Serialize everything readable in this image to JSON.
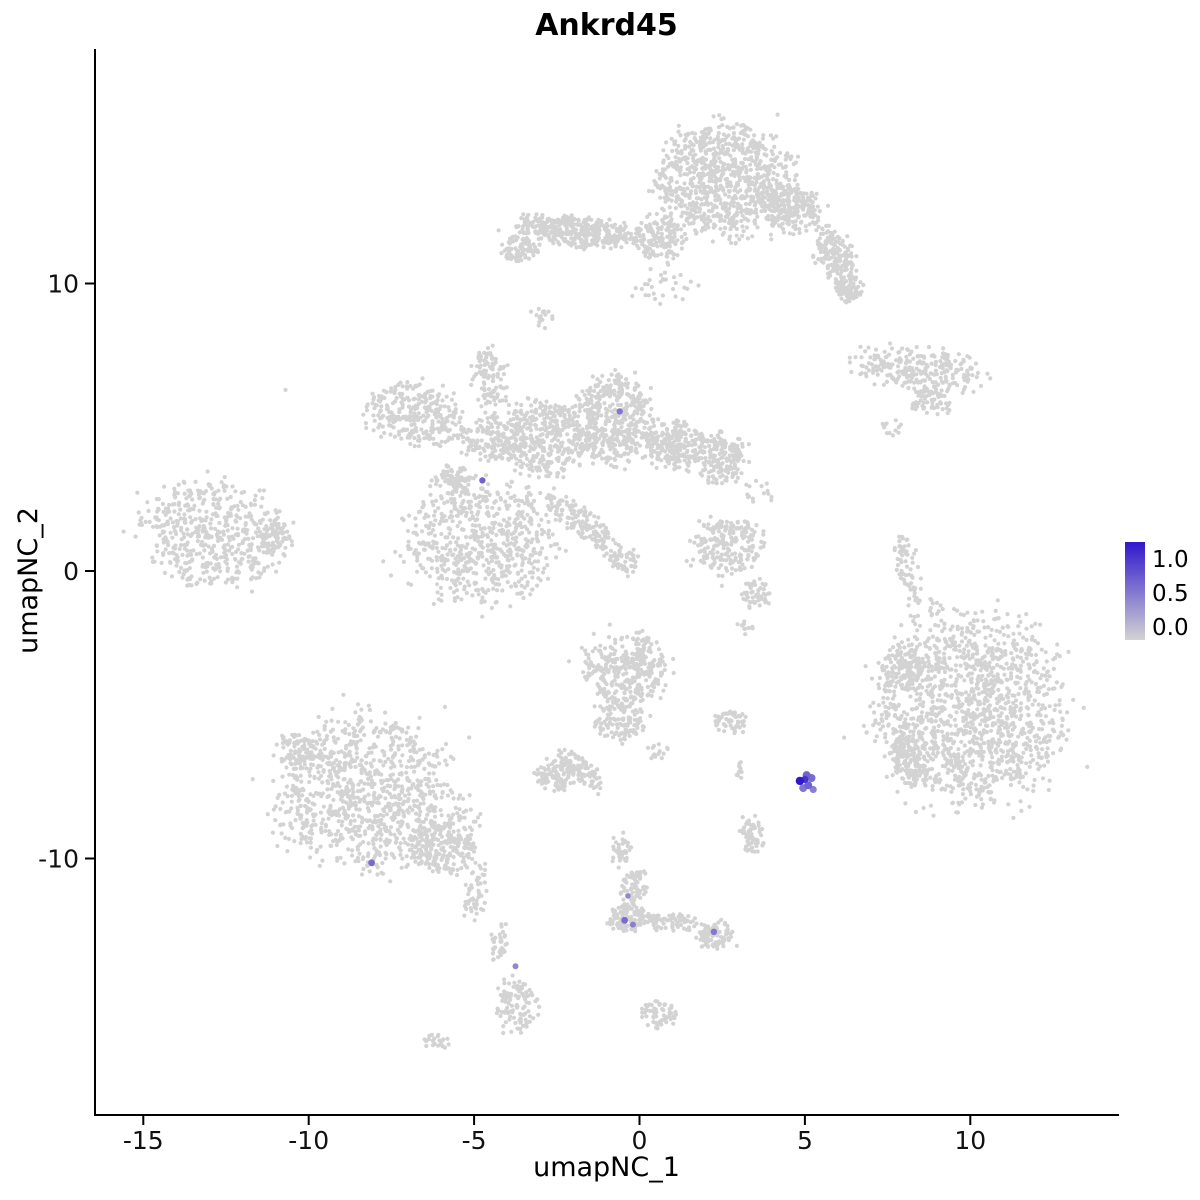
{
  "chart_data": {
    "type": "scatter",
    "title": "Ankrd45",
    "xlabel": "umapNC_1",
    "ylabel": "umapNC_2",
    "xticks": [
      -15,
      -10,
      -5,
      0,
      5,
      10
    ],
    "yticks": [
      -10,
      0,
      10
    ],
    "xlim": [
      -16.5,
      14.4
    ],
    "ylim": [
      -18.9,
      18.1
    ],
    "grid": false,
    "point_color": "#d3d3d3",
    "legend": {
      "position": "right",
      "labels": [
        "1.0",
        "0.5",
        "0.0"
      ],
      "low_color": "#d3d3d3",
      "high_color": "#3018cc"
    },
    "background_clusters": [
      [
        2.6,
        13.6,
        2.0,
        1.9,
        900,
        0
      ],
      [
        0.6,
        11.6,
        0.7,
        0.8,
        150,
        0
      ],
      [
        -1.9,
        11.8,
        1.8,
        0.5,
        380,
        -6
      ],
      [
        -3.6,
        11.2,
        0.6,
        0.4,
        90,
        0
      ],
      [
        4.6,
        12.6,
        0.9,
        0.75,
        220,
        -30
      ],
      [
        5.9,
        11.0,
        0.55,
        0.9,
        160,
        20
      ],
      [
        6.3,
        9.9,
        0.4,
        0.5,
        80,
        0
      ],
      [
        0.8,
        9.9,
        1.0,
        0.6,
        30,
        0
      ],
      [
        8.5,
        7.0,
        1.9,
        0.75,
        260,
        -6
      ],
      [
        8.8,
        5.9,
        0.6,
        0.45,
        60,
        0
      ],
      [
        7.6,
        5.0,
        0.3,
        0.3,
        12,
        0
      ],
      [
        -6.8,
        5.4,
        1.45,
        1.0,
        280,
        -10
      ],
      [
        -4.5,
        4.5,
        0.9,
        0.7,
        140,
        -20
      ],
      [
        -4.5,
        6.6,
        0.5,
        1.2,
        110,
        8
      ],
      [
        -2.9,
        4.6,
        1.2,
        1.3,
        380,
        0
      ],
      [
        -0.8,
        5.2,
        1.2,
        1.5,
        480,
        0
      ],
      [
        1.1,
        4.4,
        0.95,
        0.8,
        240,
        0
      ],
      [
        2.5,
        3.9,
        0.75,
        0.9,
        170,
        0
      ],
      [
        -4.8,
        1.0,
        2.2,
        2.1,
        650,
        0
      ],
      [
        -5.6,
        3.2,
        0.6,
        0.5,
        70,
        0
      ],
      [
        -1.8,
        1.7,
        1.4,
        0.45,
        150,
        -42
      ],
      [
        -0.45,
        0.35,
        0.5,
        0.4,
        50,
        -30
      ],
      [
        -2.9,
        8.8,
        0.4,
        0.3,
        18,
        0
      ],
      [
        3.6,
        2.8,
        0.4,
        0.4,
        14,
        0
      ],
      [
        -12.9,
        1.35,
        2.1,
        1.75,
        520,
        -8
      ],
      [
        -11.0,
        1.1,
        0.45,
        0.55,
        50,
        0
      ],
      [
        2.65,
        0.9,
        1.1,
        1.0,
        220,
        0
      ],
      [
        3.5,
        -0.8,
        0.5,
        0.5,
        50,
        0
      ],
      [
        3.2,
        -1.9,
        0.3,
        0.3,
        10,
        0
      ],
      [
        8.2,
        -0.3,
        0.35,
        1.6,
        70,
        12
      ],
      [
        8.9,
        -1.3,
        0.25,
        0.3,
        12,
        0
      ],
      [
        10.0,
        -4.9,
        2.85,
        3.2,
        1400,
        0
      ],
      [
        8.0,
        -3.3,
        0.6,
        0.7,
        90,
        0
      ],
      [
        8.2,
        -6.6,
        0.55,
        0.9,
        130,
        15
      ],
      [
        -0.4,
        -3.45,
        1.25,
        1.2,
        330,
        0
      ],
      [
        -0.6,
        -5.2,
        0.75,
        0.75,
        120,
        0
      ],
      [
        -1.8,
        -6.9,
        0.9,
        0.35,
        90,
        -45
      ],
      [
        -2.55,
        -7.1,
        0.6,
        0.5,
        90,
        0
      ],
      [
        0.5,
        -6.3,
        0.35,
        0.35,
        14,
        0
      ],
      [
        2.75,
        -5.25,
        0.5,
        0.4,
        55,
        0
      ],
      [
        3.05,
        -6.9,
        0.2,
        0.25,
        10,
        0
      ],
      [
        3.4,
        -9.2,
        0.35,
        0.65,
        60,
        0
      ],
      [
        -8.3,
        -7.7,
        2.6,
        2.6,
        950,
        0
      ],
      [
        -6.0,
        -9.7,
        1.1,
        0.8,
        220,
        -20
      ],
      [
        -10.3,
        -6.3,
        0.7,
        0.6,
        90,
        0
      ],
      [
        -5.3,
        -8.9,
        0.6,
        0.8,
        40,
        0
      ],
      [
        -4.95,
        -11.2,
        0.35,
        0.9,
        50,
        -10
      ],
      [
        -4.25,
        -12.9,
        0.25,
        0.6,
        35,
        -8
      ],
      [
        -3.7,
        -15.1,
        0.6,
        1.0,
        110,
        0
      ],
      [
        -0.55,
        -9.7,
        0.3,
        0.5,
        40,
        0
      ],
      [
        -0.2,
        -11.0,
        0.4,
        0.6,
        70,
        -15
      ],
      [
        -0.35,
        -12.05,
        0.6,
        0.5,
        130,
        0
      ],
      [
        1.0,
        -12.2,
        0.85,
        0.3,
        70,
        -6
      ],
      [
        2.3,
        -12.7,
        0.55,
        0.5,
        90,
        0
      ],
      [
        0.6,
        -15.4,
        0.55,
        0.45,
        60,
        0
      ],
      [
        -6.1,
        -16.35,
        0.4,
        0.25,
        22,
        0
      ]
    ],
    "sparse_points": [
      [
        -10.7,
        6.3
      ]
    ],
    "expressing_cells": [
      {
        "x": -0.6,
        "y": 5.55,
        "value": 0.5,
        "r": 3.2
      },
      {
        "x": -4.75,
        "y": 3.15,
        "value": 0.6,
        "r": 3.2
      },
      {
        "x": 4.85,
        "y": -7.3,
        "value": 1.0,
        "r": 4.2
      },
      {
        "x": 5.05,
        "y": -7.1,
        "value": 0.6,
        "r": 4
      },
      {
        "x": 5.2,
        "y": -7.2,
        "value": 0.55,
        "r": 4
      },
      {
        "x": 5.1,
        "y": -7.45,
        "value": 0.6,
        "r": 4
      },
      {
        "x": 4.95,
        "y": -7.55,
        "value": 0.5,
        "r": 4
      },
      {
        "x": 5.25,
        "y": -7.6,
        "value": 0.45,
        "r": 3.6
      },
      {
        "x": 5.0,
        "y": -7.25,
        "value": 0.85,
        "r": 3.6
      },
      {
        "x": -8.1,
        "y": -10.15,
        "value": 0.55,
        "r": 3.4
      },
      {
        "x": -0.35,
        "y": -11.3,
        "value": 0.4,
        "r": 2.8
      },
      {
        "x": -0.45,
        "y": -12.15,
        "value": 0.55,
        "r": 3.4
      },
      {
        "x": -0.2,
        "y": -12.3,
        "value": 0.45,
        "r": 3
      },
      {
        "x": 2.25,
        "y": -12.55,
        "value": 0.5,
        "r": 3.2
      },
      {
        "x": -3.75,
        "y": -13.75,
        "value": 0.4,
        "r": 3
      }
    ]
  }
}
